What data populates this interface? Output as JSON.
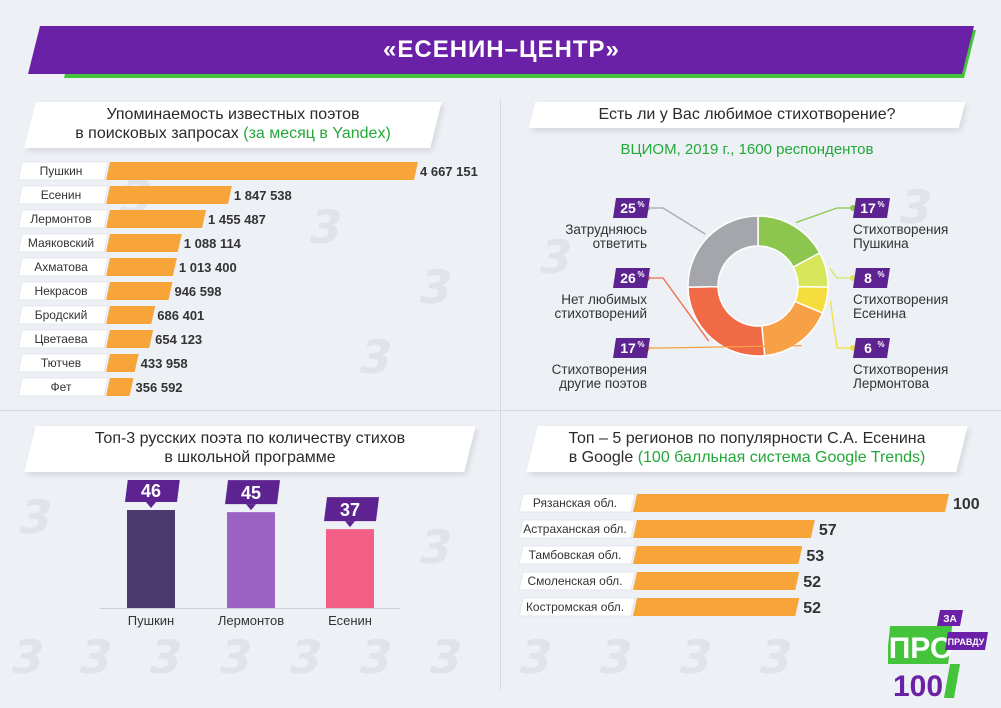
{
  "header": {
    "title": "«ЕСЕНИН–ЦЕНТР»"
  },
  "panels": {
    "yandex": {
      "title_line1": "Упоминаемость известных поэтов",
      "title_line2_prefix": "в поисковых запросах",
      "title_line2_highlight": "(за месяц в Yandex)"
    },
    "poll": {
      "title": "Есть ли у Вас любимое стихотворение?",
      "subtitle": "ВЦИОМ, 2019 г., 1600 респондентов"
    },
    "school": {
      "title_line1": "Топ-3 русских поэта по количеству стихов",
      "title_line2": "в школьной программе"
    },
    "regions": {
      "title_line1": "Топ  – 5 регионов по популярности С.А. Есенина",
      "title_line2_prefix": "в Google",
      "title_line2_highlight": "(100 балльная система Google Trends)"
    }
  },
  "logo": {
    "za": "ЗА",
    "pro": "ПРО",
    "pravdu": "ПРАВДУ",
    "num": "100"
  },
  "colors": {
    "orange": "#f7a538",
    "purple_banner": "#6b20a8",
    "green_accent": "#43c43a",
    "badge": "#5d2391"
  },
  "chart_data": [
    {
      "id": "yandex",
      "type": "bar",
      "orientation": "horizontal",
      "categories": [
        "Пушкин",
        "Есенин",
        "Лермонтов",
        "Маяковский",
        "Ахматова",
        "Некрасов",
        "Бродский",
        "Цветаева",
        "Тютчев",
        "Фет"
      ],
      "values": [
        4667151,
        1847538,
        1455487,
        1088114,
        1013400,
        946598,
        686401,
        654123,
        433958,
        356592
      ],
      "labels": [
        "4 667 151",
        "1 847 538",
        "1 455 487",
        "1 088 114",
        "1 013 400",
        "946 598",
        "686 401",
        "654 123",
        "433 958",
        "356 592"
      ]
    },
    {
      "id": "poll",
      "type": "pie",
      "slices": [
        {
          "value": 17,
          "label": "17",
          "name_lines": [
            "Стихотворения",
            "Пушкина"
          ],
          "color": "#8cc64e"
        },
        {
          "value": 8,
          "label": "8",
          "name_lines": [
            "Стихотворения",
            "Есенина"
          ],
          "color": "#d7e65a"
        },
        {
          "value": 6,
          "label": "6",
          "name_lines": [
            "Стихотворения",
            "Лермонтова"
          ],
          "color": "#f5dd3e"
        },
        {
          "value": 17,
          "label": "17",
          "name_lines": [
            "Стихотворения",
            "другие поэтов"
          ],
          "color": "#f7a045"
        },
        {
          "value": 26,
          "label": "26",
          "name_lines": [
            "Нет любимых",
            "стихотворений"
          ],
          "color": "#ef6a45"
        },
        {
          "value": 25,
          "label": "25",
          "name_lines": [
            "Затрудняюсь",
            "ответить"
          ],
          "color": "#a4a6ab"
        }
      ],
      "unit": "%"
    },
    {
      "id": "school",
      "type": "bar",
      "orientation": "vertical",
      "categories": [
        "Пушкин",
        "Лермонтов",
        "Есенин"
      ],
      "values": [
        46,
        45,
        37
      ],
      "colors": [
        "#4a3a6e",
        "#9b63c3",
        "#f25e86"
      ]
    },
    {
      "id": "regions",
      "type": "bar",
      "orientation": "horizontal",
      "categories": [
        "Рязанская обл.",
        "Астраханская обл.",
        "Тамбовская обл.",
        "Смоленская обл.",
        "Костромская обл."
      ],
      "values": [
        100,
        57,
        53,
        52,
        52
      ]
    }
  ]
}
